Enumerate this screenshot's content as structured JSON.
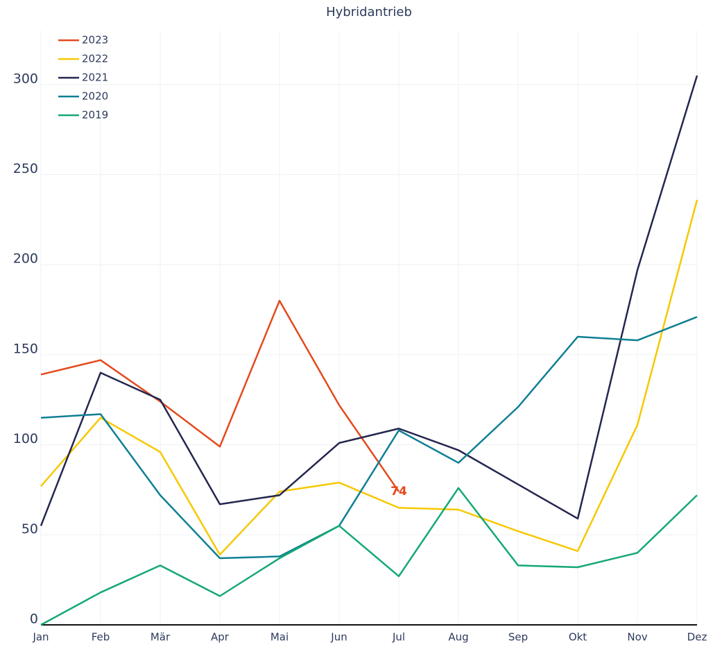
{
  "chart_data": {
    "type": "line",
    "title": "Hybridantrieb",
    "categories": [
      "Jan",
      "Feb",
      "Mär",
      "Apr",
      "Mai",
      "Jun",
      "Jul",
      "Aug",
      "Sep",
      "Okt",
      "Nov",
      "Dez"
    ],
    "series": [
      {
        "name": "2023",
        "color": "#e44a1b",
        "label_last": true,
        "values": [
          139,
          147,
          124,
          99,
          180,
          122,
          74,
          null,
          null,
          null,
          null,
          null
        ]
      },
      {
        "name": "2022",
        "color": "#f7c800",
        "values": [
          77,
          115,
          96,
          39,
          74,
          79,
          65,
          64,
          52,
          41,
          111,
          236
        ]
      },
      {
        "name": "2021",
        "color": "#23264f",
        "values": [
          55,
          140,
          125,
          67,
          72,
          101,
          109,
          97,
          78,
          59,
          197,
          305
        ]
      },
      {
        "name": "2020",
        "color": "#0f7f94",
        "values": [
          115,
          117,
          72,
          37,
          38,
          55,
          108,
          90,
          121,
          160,
          158,
          171
        ]
      },
      {
        "name": "2019",
        "color": "#14a874",
        "values": [
          0,
          18,
          33,
          16,
          37,
          55,
          27,
          76,
          33,
          32,
          40,
          72
        ]
      }
    ],
    "ylim": [
      0,
      330
    ],
    "yticks": [
      0,
      50,
      100,
      150,
      200,
      250,
      300
    ],
    "grid": true,
    "legend": "top-left"
  }
}
